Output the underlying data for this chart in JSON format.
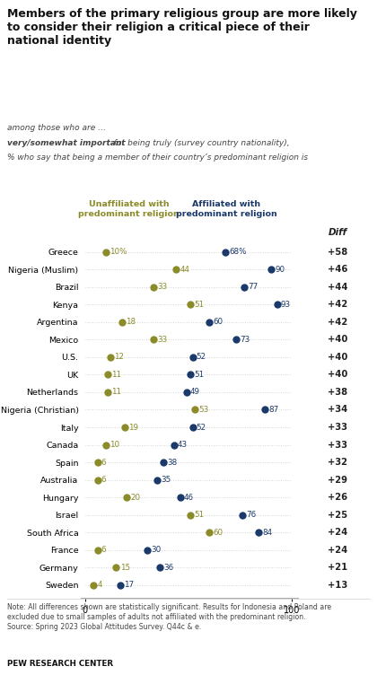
{
  "title": "Members of the primary religious group are more likely\nto consider their religion a critical piece of their\nnational identity",
  "subtitle_line1": "% who say that being a member of their country’s predominant religion is",
  "subtitle_bold": "very/somewhat important",
  "subtitle_line2": " for being truly (survey country nationality),",
  "subtitle_line3": "among those who are …",
  "legend_unaffiliated": "Unaffiliated with\npredominant religion",
  "legend_affiliated": "Affiliated with\npredominant religion",
  "countries": [
    "Greece",
    "Nigeria (Muslim)",
    "Brazil",
    "Kenya",
    "Argentina",
    "Mexico",
    "U.S.",
    "UK",
    "Netherlands",
    "Nigeria (Christian)",
    "Italy",
    "Canada",
    "Spain",
    "Australia",
    "Hungary",
    "Israel",
    "South Africa",
    "France",
    "Germany",
    "Sweden"
  ],
  "unaffiliated": [
    10,
    44,
    33,
    51,
    18,
    33,
    12,
    11,
    11,
    53,
    19,
    10,
    6,
    6,
    20,
    51,
    60,
    6,
    15,
    4
  ],
  "affiliated": [
    68,
    90,
    77,
    93,
    60,
    73,
    52,
    51,
    49,
    87,
    52,
    43,
    38,
    35,
    46,
    76,
    84,
    30,
    36,
    17
  ],
  "diff": [
    "+58",
    "+46",
    "+44",
    "+42",
    "+42",
    "+40",
    "+40",
    "+40",
    "+38",
    "+34",
    "+33",
    "+33",
    "+32",
    "+29",
    "+26",
    "+25",
    "+24",
    "+24",
    "+21",
    "+13"
  ],
  "color_unaffiliated": "#8B8B2A",
  "color_affiliated": "#1B3A6B",
  "color_diff_bg": "#E8E0D0",
  "background_color": "#FFFFFF",
  "note_line1": "Note: All differences shown are statistically significant. Results for Indonesia and Poland are",
  "note_line2": "excluded due to small samples of adults not affiliated with the predominant religion.",
  "note_line3": "Source: Spring 2023 Global Attitudes Survey. Q44c & e.",
  "source_bold": "PEW RESEARCH CENTER"
}
